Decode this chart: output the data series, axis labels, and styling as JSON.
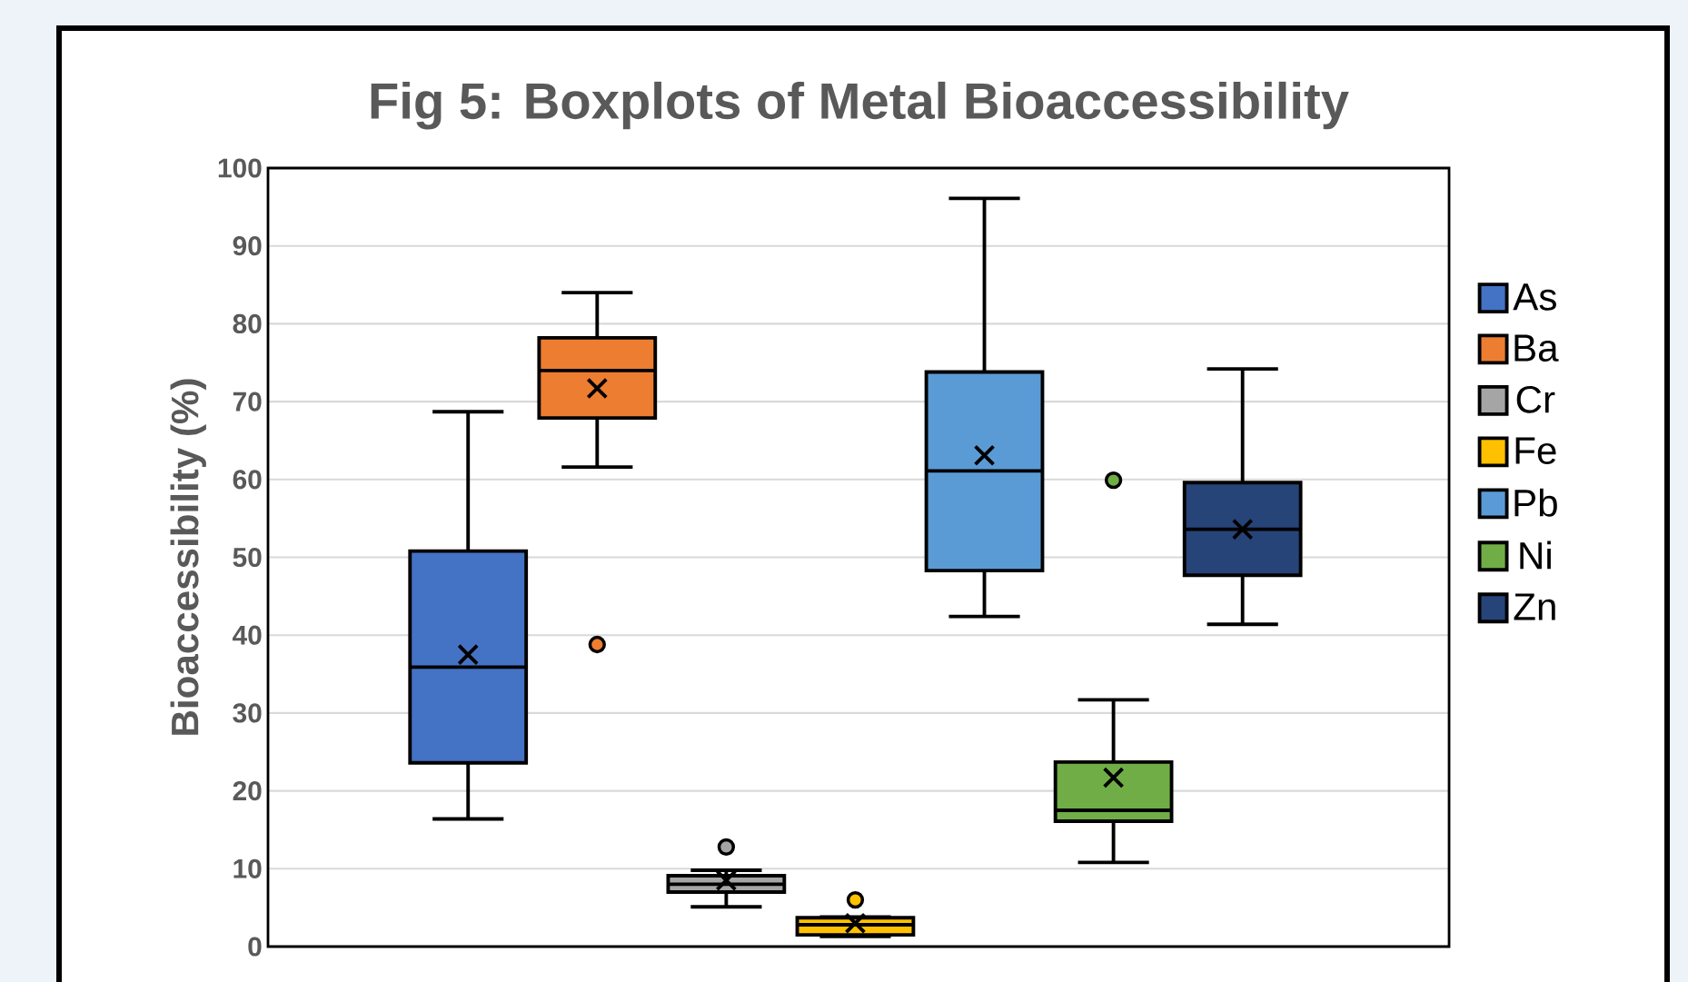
{
  "chart_data": {
    "type": "box",
    "title": "Fig 5: Boxplots of Metal Bioaccessibility",
    "ylabel": "Bioaccessibility (%)",
    "categories": [
      null
    ],
    "ylim": [
      0,
      100
    ],
    "yticks": [
      0,
      10,
      20,
      30,
      40,
      50,
      60,
      70,
      80,
      90,
      100
    ],
    "grid": "y",
    "legend": "right",
    "series": [
      {
        "name": "As",
        "color": "#4472c4",
        "boxes": [
          {
            "low": 16.4,
            "q1": 23.6,
            "median": 35.9,
            "q3": 50.8,
            "high": 68.7,
            "mean": 37.5
          }
        ]
      },
      {
        "name": "Ba",
        "color": "#ed7d31",
        "boxes": [
          {
            "low": 61.6,
            "q1": 67.9,
            "median": 74.0,
            "q3": 78.2,
            "high": 84.0,
            "mean": 71.7,
            "outliers": [
              38.8
            ]
          }
        ]
      },
      {
        "name": "Cr",
        "color": "#a5a5a5",
        "boxes": [
          {
            "low": 5.1,
            "q1": 7.0,
            "median": 8.0,
            "q3": 9.1,
            "high": 9.8,
            "mean": 8.5,
            "outliers": [
              12.8
            ]
          }
        ]
      },
      {
        "name": "Fe",
        "color": "#ffc000",
        "boxes": [
          {
            "low": 1.3,
            "q1": 1.5,
            "median": 2.8,
            "q3": 3.7,
            "high": 3.8,
            "mean": 3.0,
            "outliers": [
              6.0
            ]
          }
        ]
      },
      {
        "name": "Pb",
        "color": "#5b9bd5",
        "boxes": [
          {
            "low": 42.4,
            "q1": 48.3,
            "median": 61.1,
            "q3": 73.8,
            "high": 96.1,
            "mean": 63.1
          }
        ]
      },
      {
        "name": "Ni",
        "color": "#70ad47",
        "boxes": [
          {
            "low": 10.8,
            "q1": 16.1,
            "median": 17.5,
            "q3": 23.7,
            "high": 31.7,
            "mean": 21.7,
            "outliers": [
              59.9
            ]
          }
        ]
      },
      {
        "name": "Zn",
        "color": "#264478",
        "boxes": [
          {
            "low": 41.4,
            "q1": 47.7,
            "median": 53.6,
            "q3": 59.6,
            "high": 74.2,
            "mean": 53.6
          }
        ]
      }
    ]
  }
}
